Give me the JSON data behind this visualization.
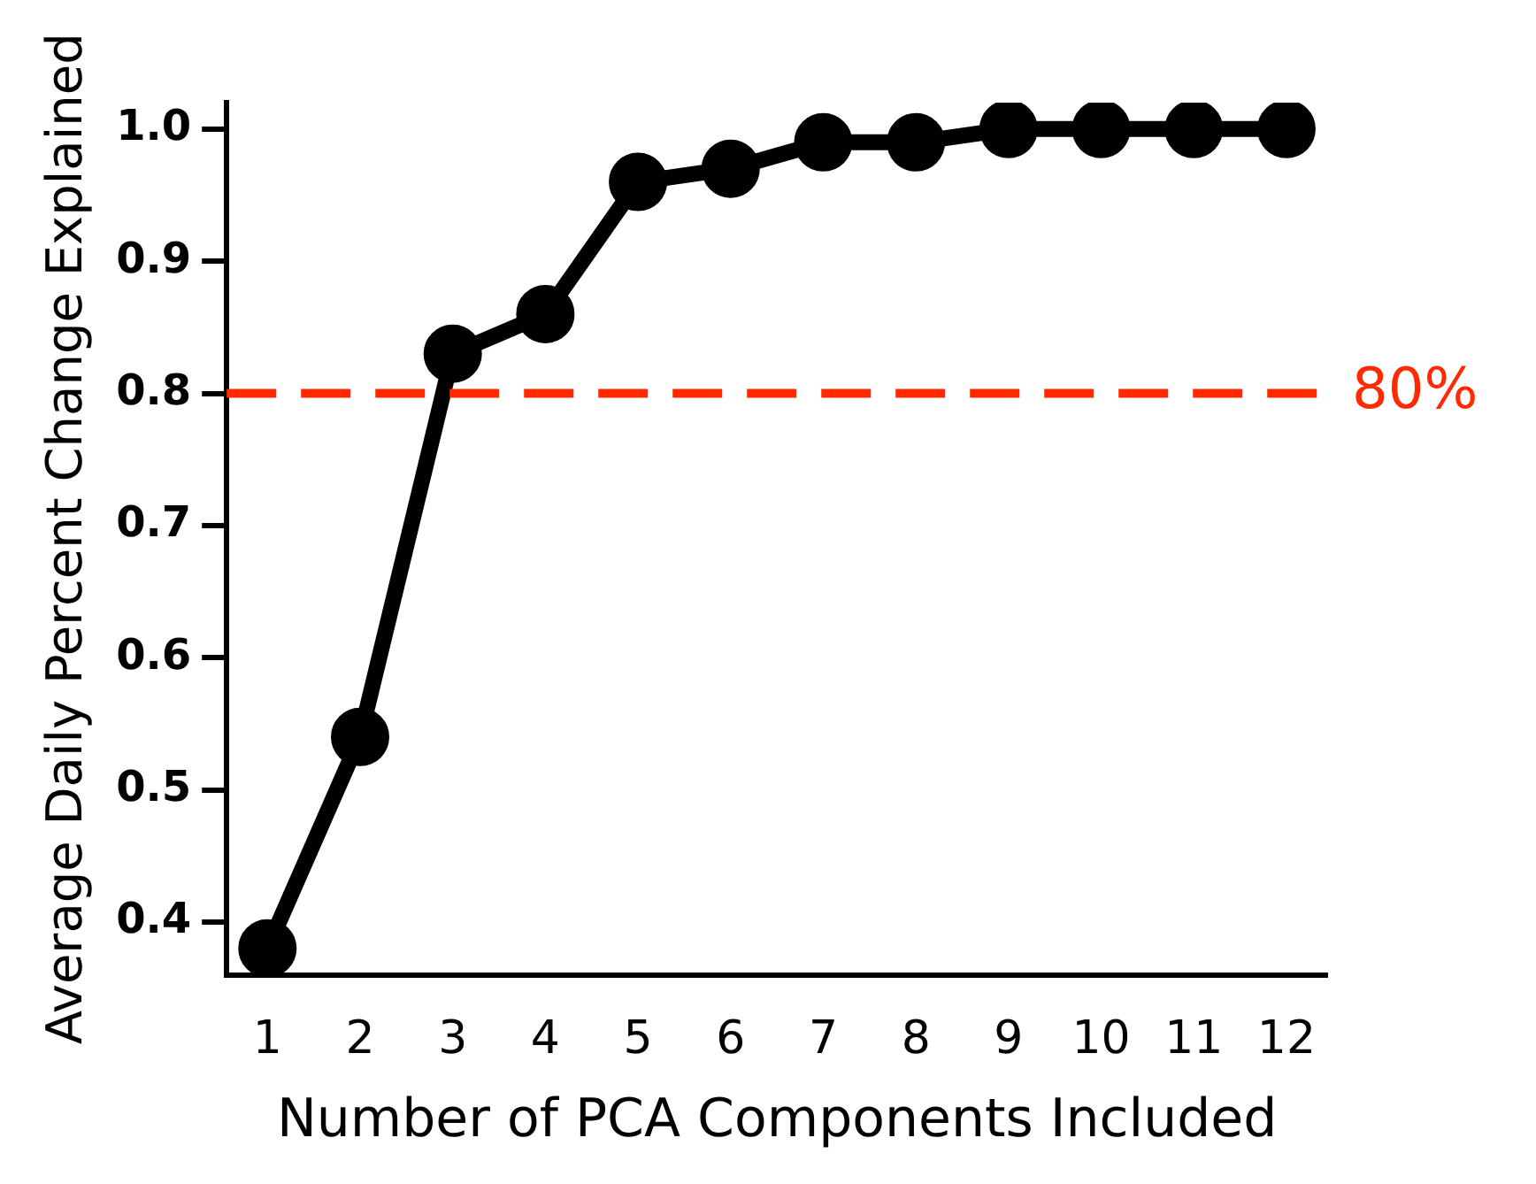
{
  "chart_data": {
    "type": "line",
    "xlabel": "Number of PCA Components Included",
    "ylabel": "Average Daily Percent Change Explained",
    "x": [
      1,
      2,
      3,
      4,
      5,
      6,
      7,
      8,
      9,
      10,
      11,
      12
    ],
    "series": [
      {
        "color": "#000000",
        "values": [
          0.38,
          0.54,
          0.83,
          0.86,
          0.96,
          0.97,
          0.99,
          0.99,
          1.0,
          1.0,
          1.0,
          1.0
        ]
      }
    ],
    "xlim": [
      0.56,
      12.44
    ],
    "xticks": [
      1,
      2,
      3,
      4,
      5,
      6,
      7,
      8,
      9,
      10,
      11,
      12
    ],
    "ylim": [
      0.36,
      1.02
    ],
    "yticks": [
      0.4,
      0.5,
      0.6,
      0.7,
      0.8,
      0.9,
      {
        "value": 1.0,
        "label": "1.0"
      }
    ],
    "ref_lines": [
      {
        "axis": "y",
        "value": 0.8,
        "label": "80%",
        "color": "#ff2a00",
        "line_style": "dashed"
      }
    ],
    "marker": "circle",
    "line_style": "solid",
    "grid": false,
    "legend": false
  }
}
